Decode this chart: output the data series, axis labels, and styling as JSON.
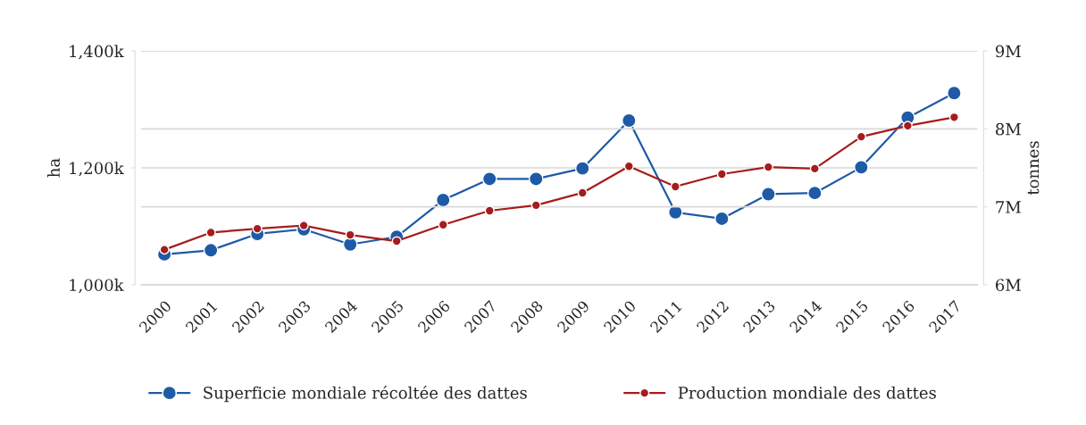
{
  "chart_data": {
    "type": "line",
    "categories": [
      "2000",
      "2001",
      "2002",
      "2003",
      "2004",
      "2005",
      "2006",
      "2007",
      "2008",
      "2009",
      "2010",
      "2011",
      "2012",
      "2013",
      "2014",
      "2015",
      "2016",
      "2017"
    ],
    "series": [
      {
        "name": "Superficie mondiale récoltée des dattes",
        "color": "#1f5aa6",
        "axis": "y",
        "values": [
          1052000,
          1059000,
          1087000,
          1095000,
          1069000,
          1082000,
          1145000,
          1181000,
          1181000,
          1199000,
          1281000,
          1124000,
          1113000,
          1155000,
          1157000,
          1201000,
          1286000,
          1328000
        ]
      },
      {
        "name": "Production mondiale des dattes",
        "color": "#a61c1c",
        "axis": "y2",
        "values": [
          6450000,
          6670000,
          6720000,
          6760000,
          6640000,
          6560000,
          6770000,
          6950000,
          7020000,
          7180000,
          7520000,
          7260000,
          7420000,
          7510000,
          7490000,
          7900000,
          8040000,
          8150000
        ]
      }
    ],
    "ylabel": "ha",
    "y2label": "tonnes",
    "ylim": [
      1000000,
      1400000
    ],
    "yticks": [
      {
        "value": 1000000,
        "label": "1,000k"
      },
      {
        "value": 1200000,
        "label": "1,200k"
      },
      {
        "value": 1400000,
        "label": "1,400k"
      }
    ],
    "y2lim": [
      6000000,
      9000000
    ],
    "y2ticks": [
      {
        "value": 6000000,
        "label": "6M"
      },
      {
        "value": 7000000,
        "label": "7M"
      },
      {
        "value": 8000000,
        "label": "8M"
      },
      {
        "value": 9000000,
        "label": "9M"
      }
    ],
    "grid": "y",
    "legend": "bottom",
    "marker": "circle",
    "line_style": "solid"
  }
}
